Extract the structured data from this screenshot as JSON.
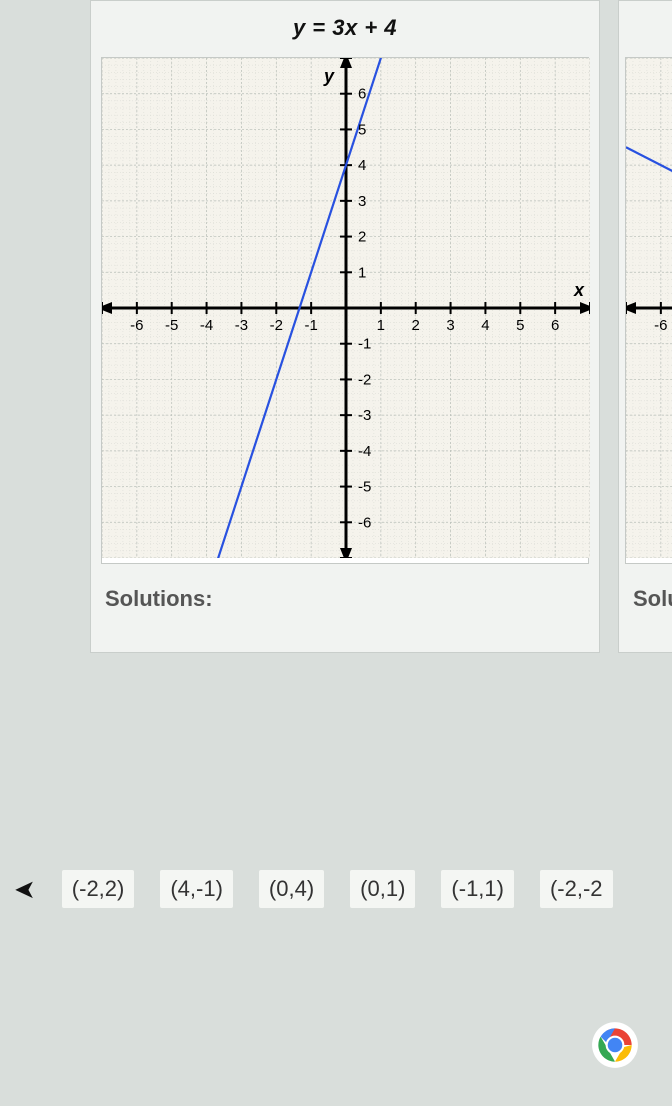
{
  "panel1": {
    "title": "y = 3x + 4",
    "solutions_label": "Solutions:",
    "chart": {
      "type": "line",
      "xlim": [
        -7,
        7
      ],
      "ylim": [
        -7,
        7
      ],
      "xtick_step": 1,
      "ytick_step": 1,
      "x_labels": [
        -6,
        -5,
        -4,
        -3,
        -2,
        -1,
        1,
        2,
        3,
        4,
        5,
        6
      ],
      "y_labels": [
        -6,
        -5,
        -4,
        -3,
        -2,
        -1,
        1,
        2,
        3,
        4,
        5,
        6
      ],
      "x_axis_label": "x",
      "y_axis_label": "y",
      "axis_label_fontsize": 18,
      "tick_label_fontsize": 15,
      "line": {
        "slope": 3,
        "intercept": 4,
        "color": "#2851e0",
        "width": 2.2
      },
      "background_color": "#f5f3ec",
      "major_grid_color": "#b8beb7",
      "minor_grid_color": "#d7d9d2",
      "minor_per_major": 5,
      "axis_color": "#000000",
      "axis_width": 3
    }
  },
  "panel2": {
    "solutions_label": "Solut",
    "chart": {
      "type": "line",
      "xlim": [
        -7,
        7
      ],
      "ylim": [
        -7,
        7
      ],
      "tick_visible_x": [
        -6
      ],
      "line": {
        "slope": -0.5,
        "intercept": 1,
        "color": "#2851e0",
        "width": 2.2
      },
      "background_color": "#f5f3ec",
      "major_grid_color": "#b8beb7",
      "minor_grid_color": "#d7d9d2",
      "axis_color": "#000000",
      "axis_width": 3
    }
  },
  "answers": [
    "(-2,2)",
    "(4,-1)",
    "(0,4)",
    "(0,1)",
    "(-1,1)",
    "(-2,-2"
  ],
  "colors": {
    "page_bg": "#d9dedb",
    "panel_bg": "#f1f3f1",
    "panel_border": "#c9cecb",
    "chip_bg": "#f4f6f3",
    "chip_text": "#333333"
  },
  "chrome_icon": {
    "red": "#ea4335",
    "yellow": "#fbbc05",
    "green": "#34a853",
    "blue": "#4285f4",
    "white": "#ffffff"
  }
}
